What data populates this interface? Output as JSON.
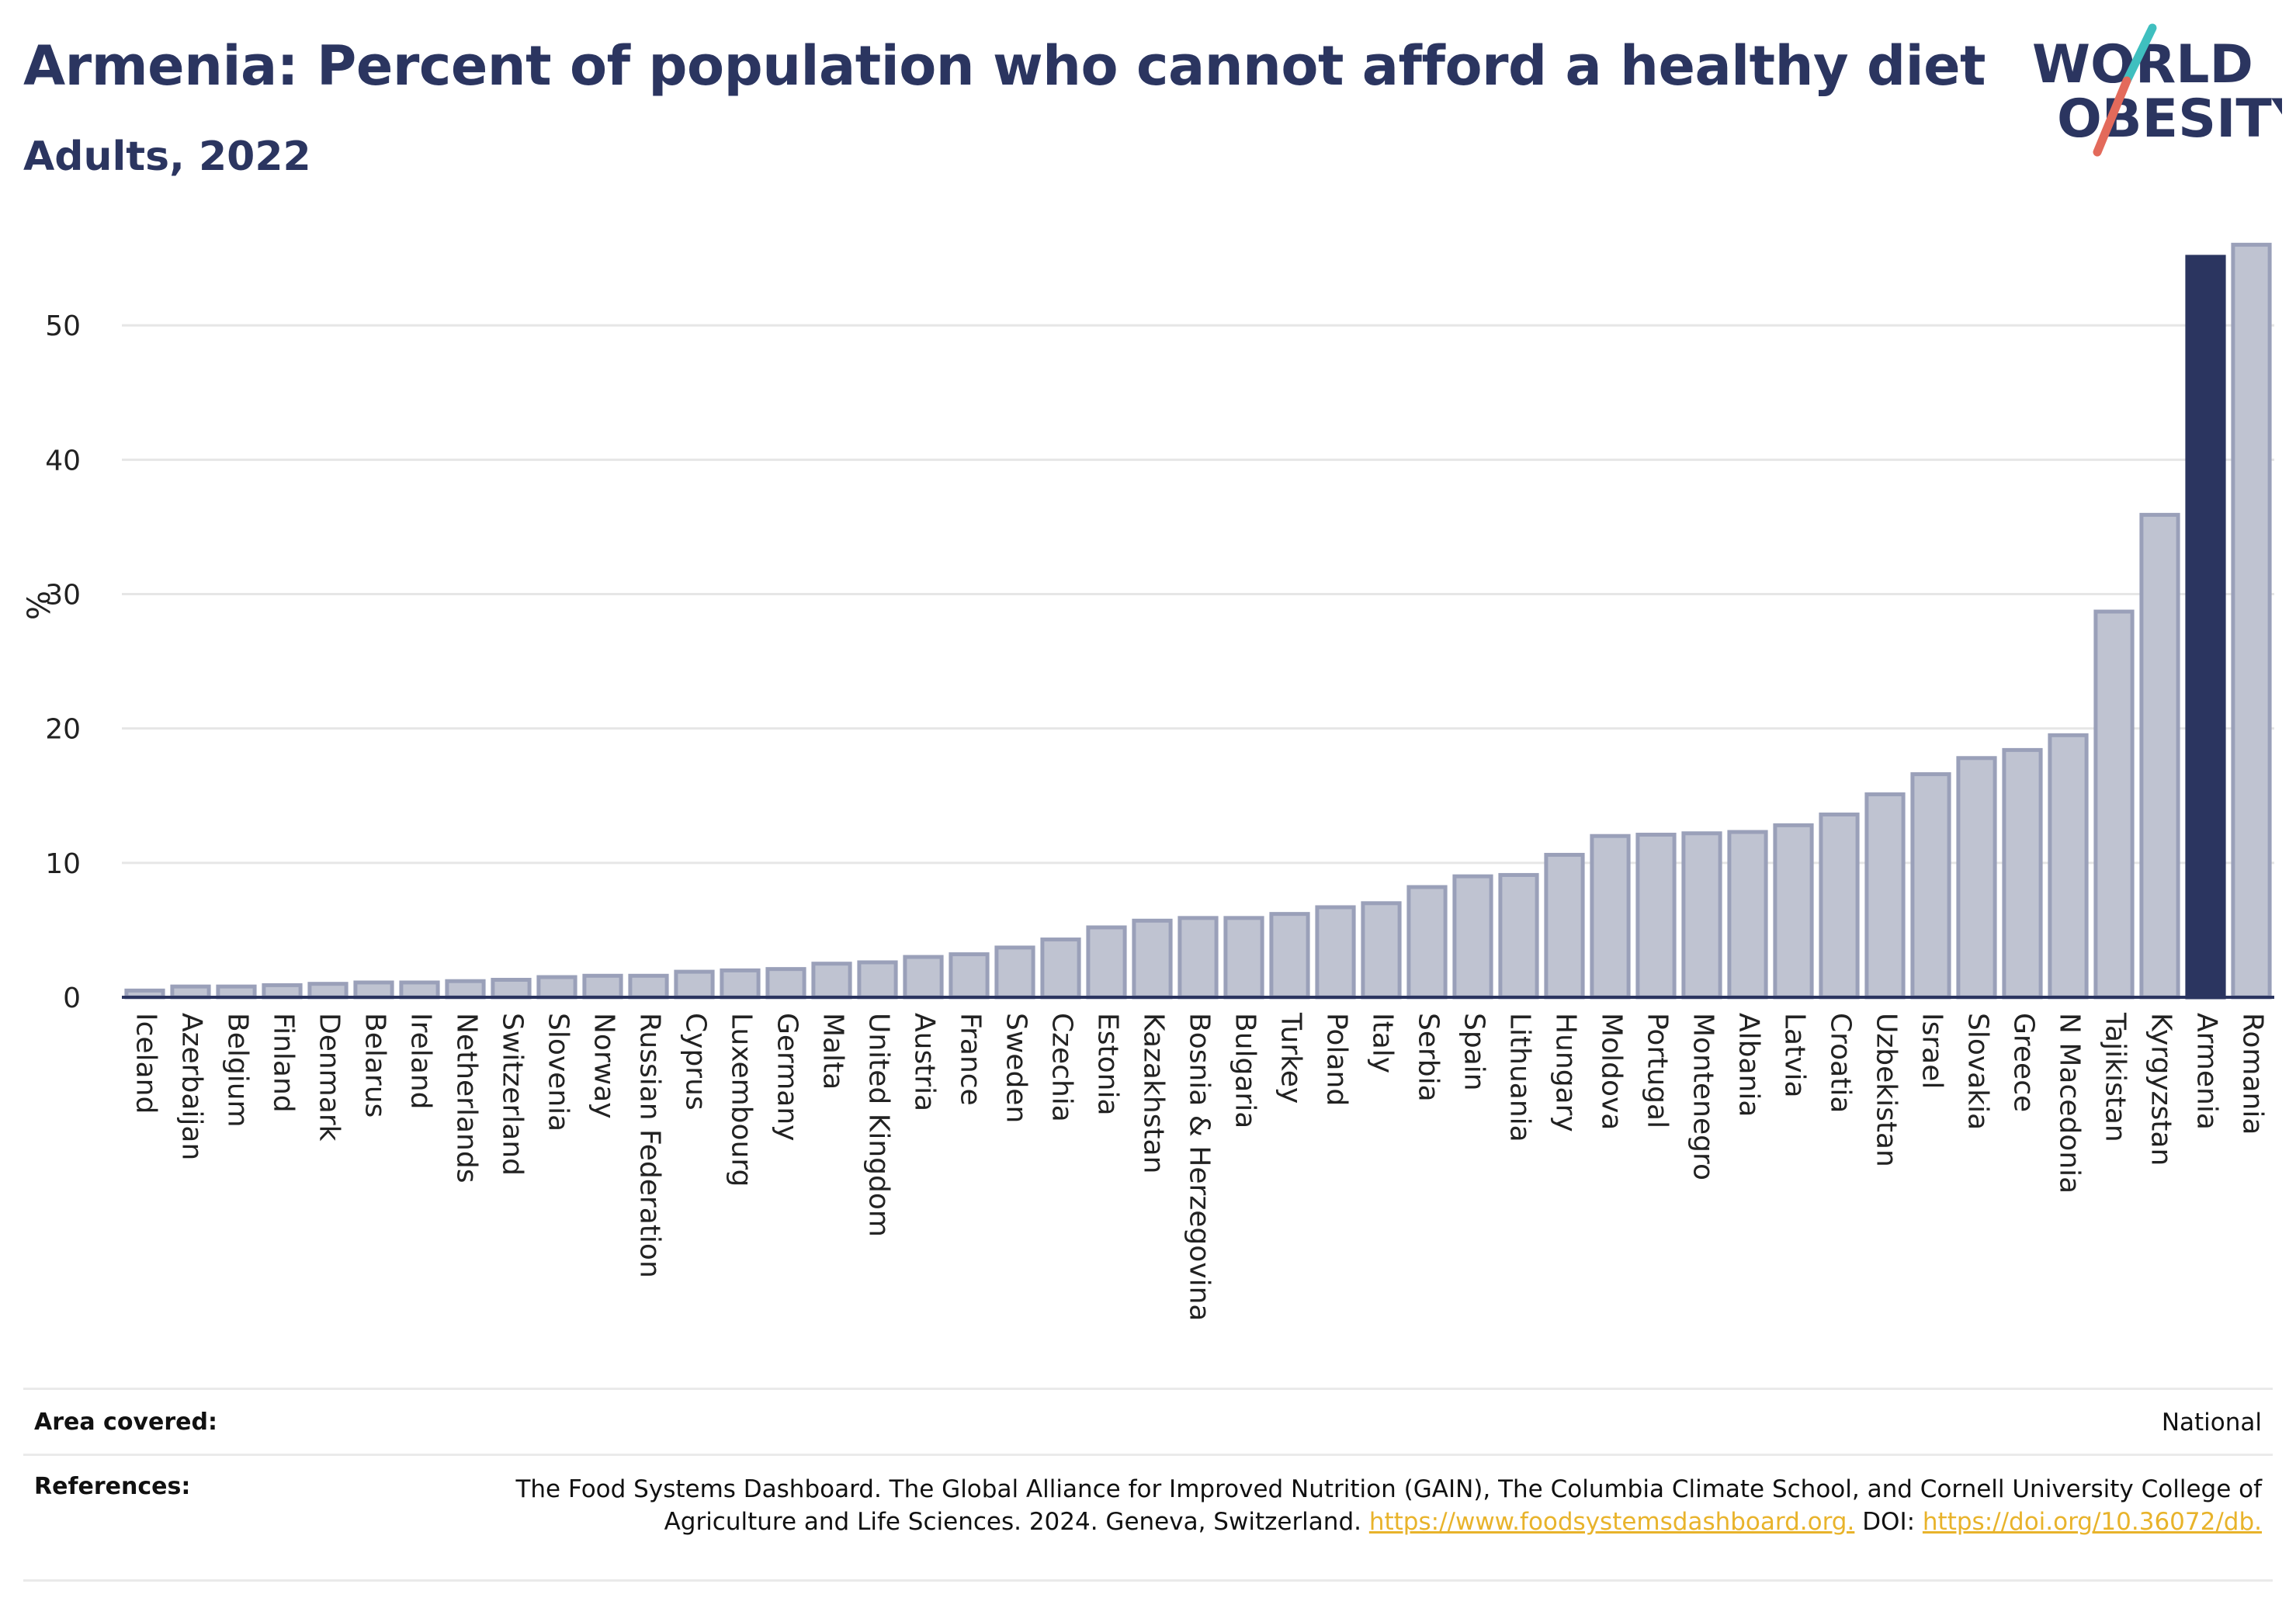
{
  "header": {
    "title": "Armenia: Percent of population who cannot afford a healthy diet",
    "subtitle": "Adults, 2022"
  },
  "logo": {
    "line1": "WORLD",
    "line2": "OBESITY",
    "slash_colors": [
      "#3fbfbf",
      "#e36a5b"
    ]
  },
  "chart_data": {
    "type": "bar",
    "ylabel": "%",
    "xlabel": "",
    "ylim": [
      0,
      57
    ],
    "yticks": [
      0,
      10,
      20,
      30,
      40,
      50
    ],
    "grid": true,
    "highlight": "Armenia",
    "colors": {
      "bar": "#bfc3d1",
      "bar_stroke": "#9aa0b9",
      "highlight": "#2b3560",
      "grid": "#e6e6e6",
      "axis": "#2b3560"
    },
    "categories": [
      "Iceland",
      "Azerbaijan",
      "Belgium",
      "Finland",
      "Denmark",
      "Belarus",
      "Ireland",
      "Netherlands",
      "Switzerland",
      "Slovenia",
      "Norway",
      "Russian Federation",
      "Cyprus",
      "Luxembourg",
      "Germany",
      "Malta",
      "United Kingdom",
      "Austria",
      "France",
      "Sweden",
      "Czechia",
      "Estonia",
      "Kazakhstan",
      "Bosnia & Herzegovina",
      "Bulgaria",
      "Turkey",
      "Poland",
      "Italy",
      "Serbia",
      "Spain",
      "Lithuania",
      "Hungary",
      "Moldova",
      "Portugal",
      "Montenegro",
      "Albania",
      "Latvia",
      "Croatia",
      "Uzbekistan",
      "Israel",
      "Slovakia",
      "Greece",
      "N Macedonia",
      "Tajikistan",
      "Kyrgyzstan",
      "Armenia",
      "Romania"
    ],
    "values": [
      0.5,
      0.8,
      0.8,
      0.9,
      1.0,
      1.1,
      1.1,
      1.2,
      1.3,
      1.5,
      1.6,
      1.6,
      1.9,
      2.0,
      2.1,
      2.5,
      2.6,
      3.0,
      3.2,
      3.7,
      4.3,
      5.2,
      5.7,
      5.9,
      5.9,
      6.2,
      6.7,
      7.0,
      8.2,
      9.0,
      9.1,
      10.6,
      12.0,
      12.1,
      12.2,
      12.3,
      12.8,
      13.6,
      15.1,
      16.6,
      17.8,
      18.4,
      19.5,
      28.7,
      35.9,
      55.1,
      56.0
    ]
  },
  "footer": {
    "area_label": "Area covered:",
    "area_value": "National",
    "references_label": "References:",
    "references_text_1": "The Food Systems Dashboard. The Global Alliance for Improved Nutrition (GAIN), The Columbia Climate School, and Cornell University College of Agriculture and Life Sciences. 2024. Geneva, Switzerland.",
    "references_link_1": "https://www.foodsystemsdashboard.org.",
    "references_text_2": "DOI:",
    "references_link_2": "https://doi.org/10.36072/db."
  }
}
